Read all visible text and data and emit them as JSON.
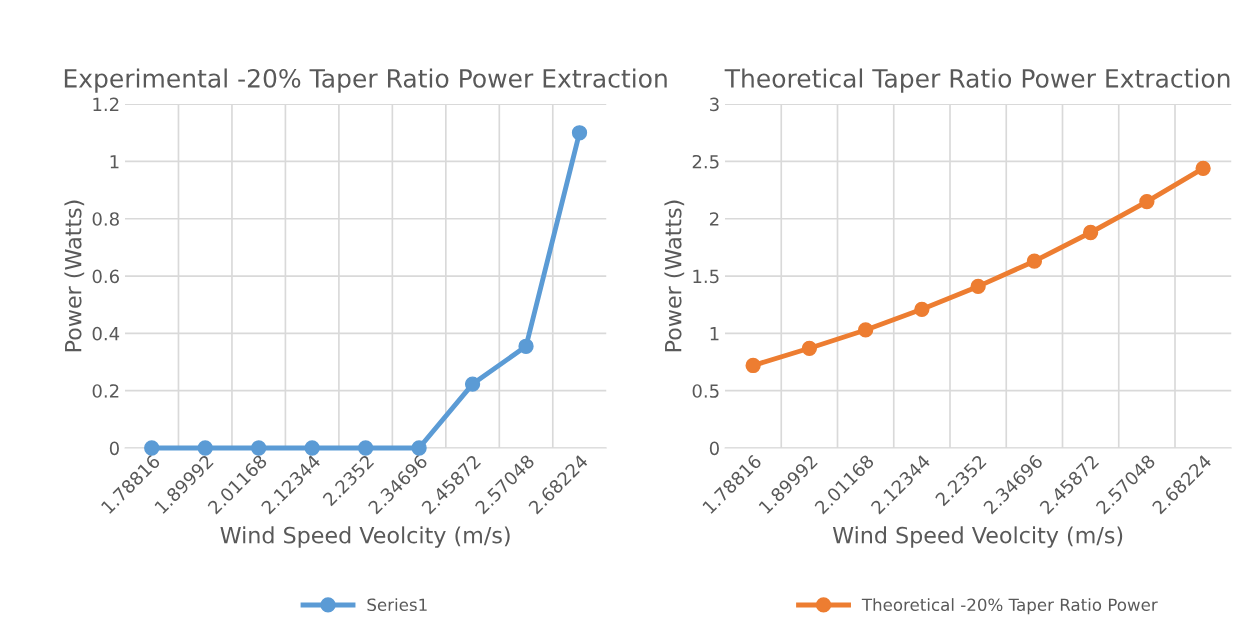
{
  "chart_data": [
    {
      "type": "line",
      "title": "Experimental -20% Taper Ratio Power Extraction",
      "xlabel": "Wind Speed Veolcity (m/s)",
      "ylabel": "Power (Watts)",
      "categories": [
        "1.78816",
        "1.89992",
        "2.01168",
        "2.12344",
        "2.2352",
        "2.34696",
        "2.45872",
        "2.57048",
        "2.68224"
      ],
      "series": [
        {
          "name": "Series1",
          "color": "#5b9bd5",
          "values": [
            0,
            0,
            0,
            0,
            0,
            0,
            0.223,
            0.355,
            1.1
          ]
        }
      ],
      "ylim": [
        0,
        1.2
      ],
      "yticks": [
        0,
        0.2,
        0.4,
        0.6,
        0.8,
        1,
        1.2
      ],
      "grid": true,
      "legend": "bottom",
      "marker": "circle",
      "line_style": "solid"
    },
    {
      "type": "line",
      "title": "Theoretical Taper Ratio Power Extraction",
      "xlabel": "Wind Speed Veolcity (m/s)",
      "ylabel": "Power (Watts)",
      "categories": [
        "1.78816",
        "1.89992",
        "2.01168",
        "2.12344",
        "2.2352",
        "2.34696",
        "2.45872",
        "2.57048",
        "2.68224"
      ],
      "series": [
        {
          "name": "Theoretical -20% Taper Ratio Power",
          "color": "#ed7d31",
          "values": [
            0.72,
            0.87,
            1.03,
            1.21,
            1.41,
            1.63,
            1.88,
            2.15,
            2.44
          ]
        }
      ],
      "ylim": [
        0,
        3
      ],
      "yticks": [
        0,
        0.5,
        1,
        1.5,
        2,
        2.5,
        3
      ],
      "grid": true,
      "legend": "bottom",
      "marker": "circle",
      "line_style": "solid"
    }
  ]
}
